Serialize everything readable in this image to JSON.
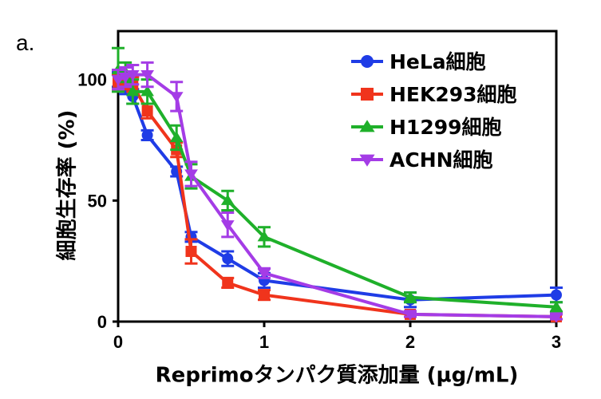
{
  "panel_label": "a.",
  "chart_data": {
    "type": "line",
    "xlabel": "Reprimoタンパク質添加量 (µg/mL)",
    "ylabel": "細胞生存率 (%)",
    "xlim": [
      0,
      3
    ],
    "ylim": [
      0,
      120
    ],
    "xticks": [
      0,
      1,
      2,
      3
    ],
    "yticks": [
      0,
      50,
      100
    ],
    "grid": false,
    "legend_position": "top-right",
    "series": [
      {
        "name": "HeLa細胞",
        "color": "#1f3ce6",
        "marker": "circle",
        "x": [
          0,
          0.05,
          0.1,
          0.2,
          0.4,
          0.5,
          0.75,
          1,
          2,
          3
        ],
        "y": [
          100,
          97,
          93,
          77,
          62,
          35,
          26,
          17,
          9,
          11
        ],
        "err": [
          3,
          3,
          3,
          2,
          2,
          2,
          3,
          3,
          3,
          3
        ]
      },
      {
        "name": "HEK293細胞",
        "color": "#f0341c",
        "marker": "square",
        "x": [
          0,
          0.05,
          0.1,
          0.2,
          0.4,
          0.5,
          0.75,
          1,
          2,
          3
        ],
        "y": [
          99,
          99,
          98,
          87,
          71,
          29,
          16,
          11,
          3,
          2
        ],
        "err": [
          3,
          3,
          3,
          3,
          3,
          5,
          2,
          2,
          1,
          1
        ]
      },
      {
        "name": "H1299細胞",
        "color": "#1fb02a",
        "marker": "triangle-up",
        "x": [
          0,
          0.05,
          0.1,
          0.2,
          0.4,
          0.5,
          0.75,
          1,
          2,
          3
        ],
        "y": [
          104,
          103,
          95,
          95,
          76,
          60,
          50,
          35,
          10,
          6
        ],
        "err": [
          9,
          4,
          5,
          5,
          5,
          5,
          4,
          4,
          2,
          2
        ]
      },
      {
        "name": "ACHN細胞",
        "color": "#a43ce6",
        "marker": "triangle-down",
        "x": [
          0,
          0.05,
          0.1,
          0.2,
          0.4,
          0.5,
          0.75,
          1,
          2,
          3
        ],
        "y": [
          100,
          101,
          102,
          102,
          93,
          61,
          40,
          20,
          3,
          2
        ],
        "err": [
          4,
          4,
          4,
          5,
          6,
          5,
          5,
          2,
          1,
          1
        ]
      }
    ]
  }
}
